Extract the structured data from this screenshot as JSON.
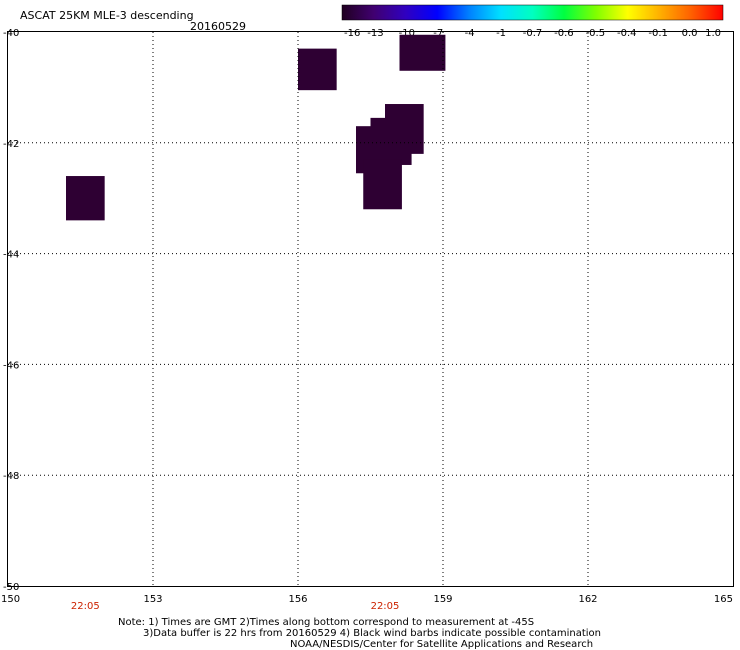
{
  "header": {
    "title": "ASCAT 25KM MLE-3 descending",
    "date": "20160529"
  },
  "colorbar": {
    "labels": [
      "-16",
      "-13",
      "-10",
      "-7",
      "-4",
      "-1",
      "-0.7",
      "-0.6",
      "-0.5",
      "-0.4",
      "-0.1",
      "0.0",
      "1.0"
    ],
    "gradient": [
      "#200020",
      "#400070",
      "#3000c0",
      "#0000ff",
      "#0080ff",
      "#00e0ff",
      "#00ffc0",
      "#00ff40",
      "#80ff00",
      "#ffff00",
      "#ffb000",
      "#ff6000",
      "#ff0000"
    ]
  },
  "map": {
    "lon_range": [
      150,
      165
    ],
    "lat_range": [
      -50,
      -40
    ],
    "lon_ticks": [
      "150",
      "153",
      "156",
      "159",
      "162",
      "165"
    ],
    "lat_ticks": [
      "-40",
      "-42",
      "-44",
      "-46",
      "-48",
      "-50"
    ],
    "time_labels": [
      {
        "lon": 151.6,
        "text": "22:05"
      },
      {
        "lon": 157.8,
        "text": "22:05"
      }
    ],
    "time_color": "#cc2200",
    "cell_color": "#2e0033",
    "cells": [
      {
        "lon0": 151.2,
        "lon1": 152.0,
        "lat0": -42.6,
        "lat1": -43.4
      },
      {
        "lon0": 156.0,
        "lon1": 156.8,
        "lat0": -40.3,
        "lat1": -41.05
      },
      {
        "lon0": 158.1,
        "lon1": 159.05,
        "lat0": -40.05,
        "lat1": -40.7
      },
      {
        "lon0": 157.2,
        "lon1": 158.0,
        "lat0": -41.7,
        "lat1": -42.55
      },
      {
        "lon0": 157.5,
        "lon1": 158.35,
        "lat0": -41.55,
        "lat1": -42.4
      },
      {
        "lon0": 157.8,
        "lon1": 158.6,
        "lat0": -41.3,
        "lat1": -42.2
      },
      {
        "lon0": 157.35,
        "lon1": 158.15,
        "lat0": -42.3,
        "lat1": -43.2
      }
    ]
  },
  "notes": {
    "line1": "Note: 1) Times are GMT 2)Times along bottom correspond to measurement at -45S",
    "line2": "3)Data buffer is 22 hrs from 20160529 4) Black wind barbs indicate possible contamination",
    "line3": "NOAA/NESDIS/Center for Satellite Applications and Research"
  }
}
